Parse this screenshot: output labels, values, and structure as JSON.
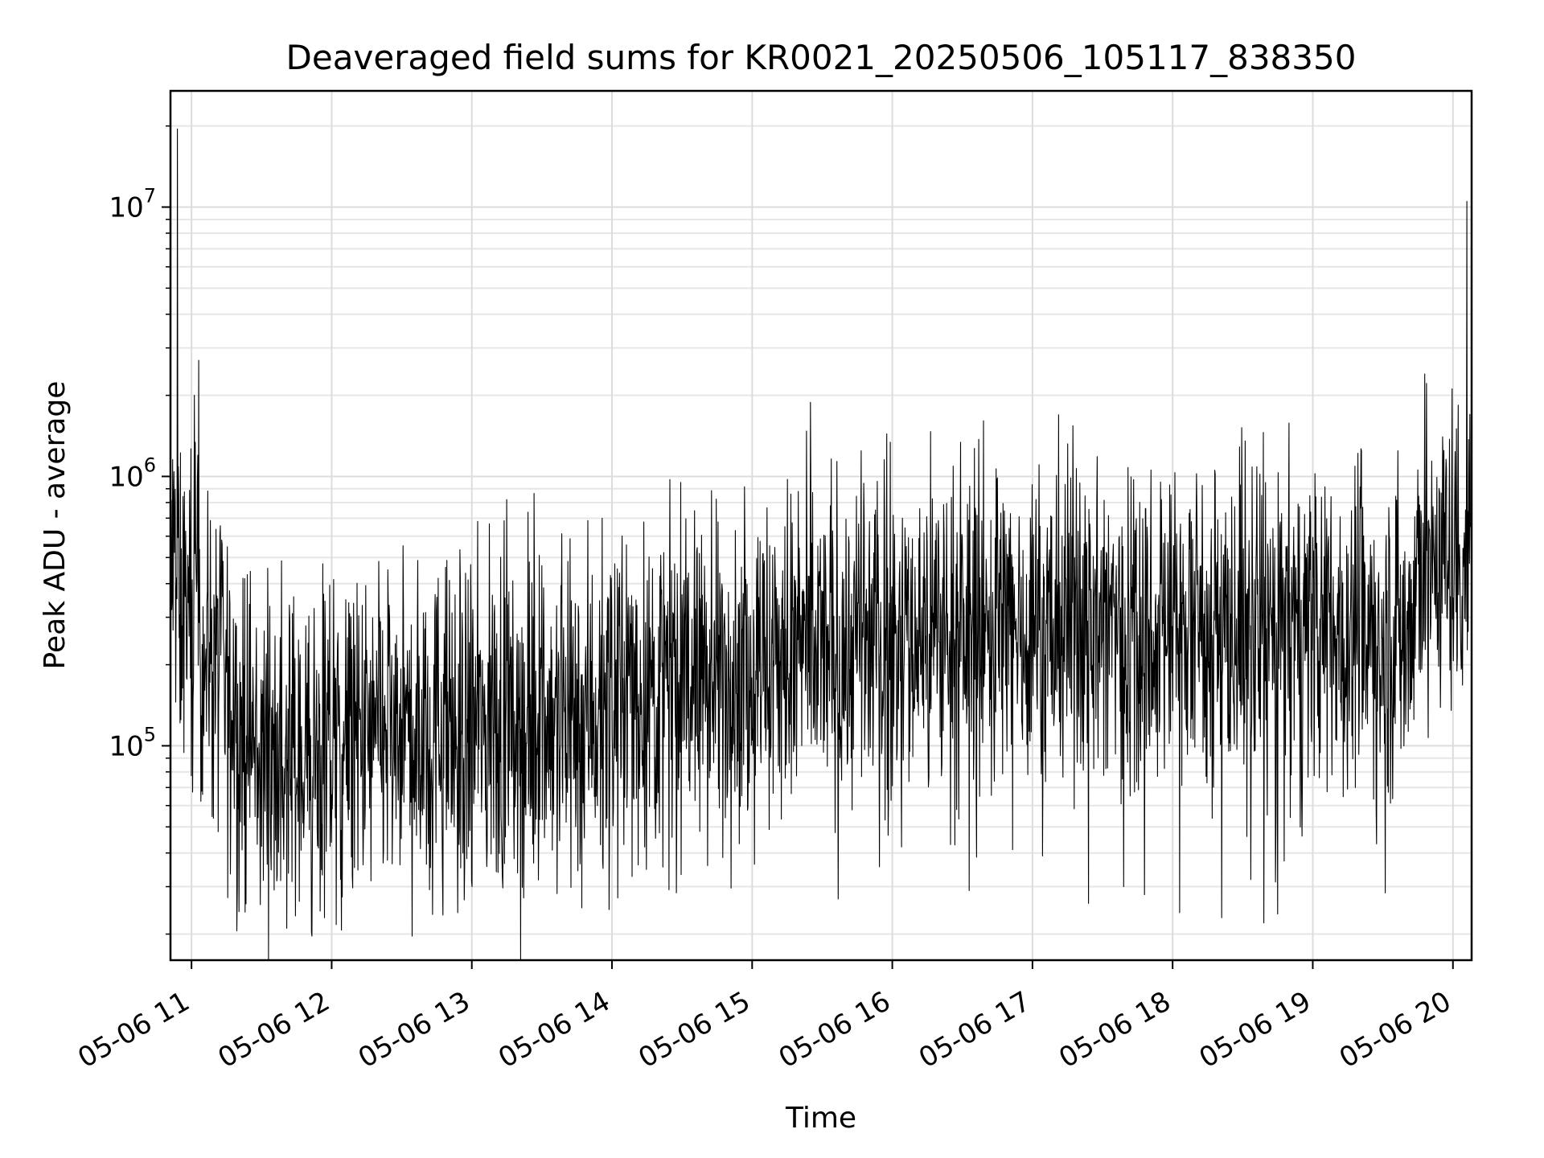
{
  "chart_data": {
    "type": "line",
    "title": "Deaveraged field sums for KR0021_20250506_105117_838350",
    "xlabel": "Time",
    "ylabel": "Peak ADU - average",
    "x_range": [
      "05-06 10:51",
      "05-06 20:08"
    ],
    "y_scale": "log",
    "ylim": [
      16000,
      27000000
    ],
    "grid": true,
    "line_color": "#000000",
    "x_ticks": [
      "05-06 11",
      "05-06 12",
      "05-06 13",
      "05-06 14",
      "05-06 15",
      "05-06 16",
      "05-06 17",
      "05-06 18",
      "05-06 19",
      "05-06 20"
    ],
    "y_ticks": [
      {
        "value": 100000,
        "base": "10",
        "exp": "5"
      },
      {
        "value": 1000000,
        "base": "10",
        "exp": "6"
      },
      {
        "value": 10000000,
        "base": "10",
        "exp": "7"
      }
    ],
    "series": [
      {
        "x_hours": [
          10.85,
          10.9,
          10.95,
          11.0,
          11.05,
          11.1,
          11.2,
          11.3,
          11.4,
          11.5,
          11.6,
          11.7,
          11.8,
          11.9,
          12.0,
          12.2,
          12.4,
          12.6,
          12.8,
          13.0,
          13.2,
          13.4,
          13.6,
          13.8,
          14.0,
          14.2,
          14.4,
          14.6,
          14.8,
          15.0,
          15.2,
          15.4,
          15.6,
          15.8,
          16.0,
          16.2,
          16.4,
          16.6,
          16.8,
          17.0,
          17.2,
          17.4,
          17.6,
          17.8,
          18.0,
          18.2,
          18.4,
          18.6,
          18.8,
          19.0,
          19.2,
          19.4,
          19.6,
          19.7,
          19.75,
          19.8,
          19.9,
          20.0,
          20.1,
          20.14
        ],
        "y_typical": [
          500000,
          360000,
          330000,
          300000,
          270000,
          240000,
          190000,
          130000,
          100000,
          95000,
          90000,
          85000,
          85000,
          90000,
          95000,
          100000,
          105000,
          110000,
          115000,
          115000,
          120000,
          125000,
          130000,
          140000,
          150000,
          160000,
          170000,
          180000,
          190000,
          200000,
          210000,
          220000,
          230000,
          240000,
          250000,
          260000,
          270000,
          275000,
          280000,
          285000,
          290000,
          290000,
          290000,
          290000,
          285000,
          280000,
          275000,
          270000,
          270000,
          265000,
          265000,
          265000,
          265000,
          270000,
          420000,
          480000,
          500000,
          510000,
          540000,
          560000
        ],
        "spikes_hours": [
          10.9,
          11.02,
          11.05,
          12.4,
          13.25,
          15.8,
          17.65,
          19.8,
          20.1,
          20.12
        ],
        "spikes_values": [
          19500000,
          2000000,
          2700000,
          450000,
          820000,
          650000,
          1100000,
          2400000,
          10500000,
          1700000
        ],
        "dips_hours": [
          11.68,
          11.95,
          12.9,
          13.0,
          16.55,
          17.4,
          17.65,
          17.8,
          18.05,
          18.35,
          18.65
        ],
        "dips_values": [
          21000,
          23000,
          24000,
          30000,
          29000,
          26000,
          30000,
          28000,
          24000,
          23000,
          22000
        ]
      }
    ]
  }
}
